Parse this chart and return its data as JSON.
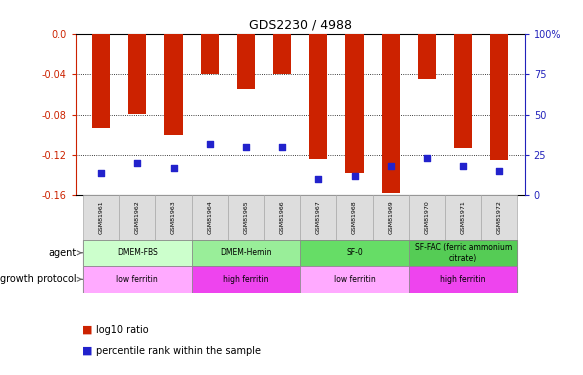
{
  "title": "GDS2230 / 4988",
  "samples": [
    "GSM81961",
    "GSM81962",
    "GSM81963",
    "GSM81964",
    "GSM81965",
    "GSM81966",
    "GSM81967",
    "GSM81968",
    "GSM81969",
    "GSM81970",
    "GSM81971",
    "GSM81972"
  ],
  "log10_ratio": [
    -0.093,
    -0.079,
    -0.1,
    -0.04,
    -0.055,
    -0.04,
    -0.124,
    -0.138,
    -0.158,
    -0.045,
    -0.113,
    -0.125
  ],
  "percentile_rank": [
    14,
    20,
    17,
    32,
    30,
    30,
    10,
    12,
    18,
    23,
    18,
    15
  ],
  "bar_color": "#cc2200",
  "blue_color": "#2222cc",
  "ylim_left": [
    -0.16,
    0.0
  ],
  "ylim_right": [
    0,
    100
  ],
  "yticks_left": [
    0.0,
    -0.04,
    -0.08,
    -0.12,
    -0.16
  ],
  "yticks_right": [
    0,
    25,
    50,
    75,
    100
  ],
  "yticks_right_labels": [
    "0",
    "25",
    "50",
    "75",
    "100%"
  ],
  "agent_groups": [
    {
      "label": "DMEM-FBS",
      "start": 0,
      "end": 3,
      "color": "#ccffcc"
    },
    {
      "label": "DMEM-Hemin",
      "start": 3,
      "end": 6,
      "color": "#99ee99"
    },
    {
      "label": "SF-0",
      "start": 6,
      "end": 9,
      "color": "#66dd66"
    },
    {
      "label": "SF-FAC (ferric ammonium\ncitrate)",
      "start": 9,
      "end": 12,
      "color": "#55cc55"
    }
  ],
  "protocol_groups": [
    {
      "label": "low ferritin",
      "start": 0,
      "end": 3,
      "color": "#ffaaff"
    },
    {
      "label": "high ferritin",
      "start": 3,
      "end": 6,
      "color": "#ee44ee"
    },
    {
      "label": "low ferritin",
      "start": 6,
      "end": 9,
      "color": "#ffaaff"
    },
    {
      "label": "high ferritin",
      "start": 9,
      "end": 12,
      "color": "#ee44ee"
    }
  ],
  "legend_items": [
    {
      "color": "#cc2200",
      "label": "log10 ratio"
    },
    {
      "color": "#2222cc",
      "label": "percentile rank within the sample"
    }
  ],
  "left_axis_color": "#cc2200",
  "right_axis_color": "#2222bb",
  "agent_label": "agent",
  "protocol_label": "growth protocol",
  "bar_width": 0.5,
  "grid_lines": [
    -0.04,
    -0.08,
    -0.12
  ]
}
